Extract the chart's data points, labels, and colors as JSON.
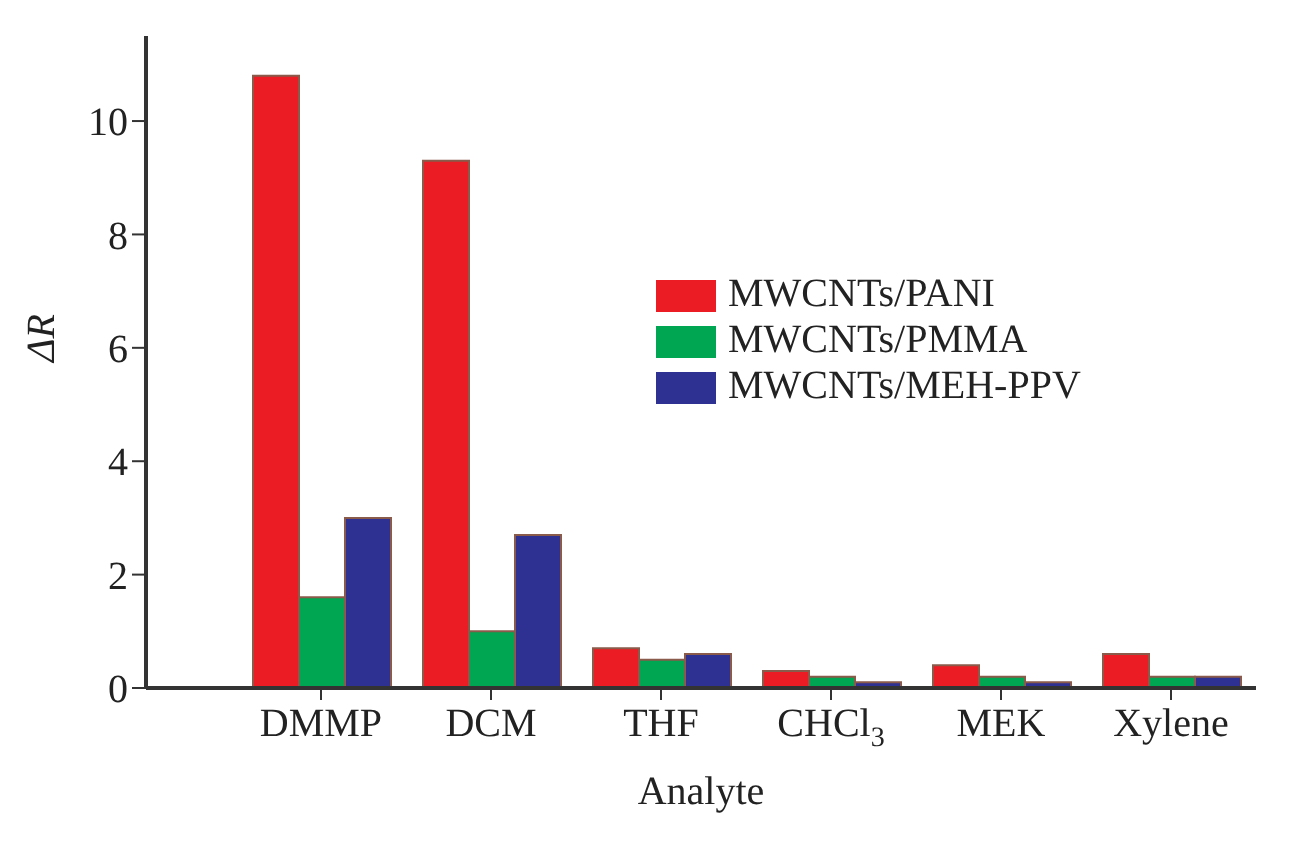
{
  "chart_data": {
    "type": "bar",
    "xlabel": "Analyte",
    "ylabel": "ΔR",
    "categories": [
      "DMMP",
      "DCM",
      "THF",
      "CHCl$_{3}$",
      "MEK",
      "Xylene"
    ],
    "series": [
      {
        "name": "MWCNTs/PANI",
        "color": "#ec1c24",
        "values": [
          10.8,
          9.3,
          0.7,
          0.3,
          0.4,
          0.6
        ]
      },
      {
        "name": "MWCNTs/PMMA",
        "color": "#00a651",
        "values": [
          1.6,
          1.0,
          0.5,
          0.2,
          0.2,
          0.2
        ]
      },
      {
        "name": "MWCNTs/MEH-PPV",
        "color": "#2e3192",
        "values": [
          3.0,
          2.7,
          0.6,
          0.1,
          0.1,
          0.2
        ]
      }
    ],
    "ylim": [
      0,
      11.5
    ],
    "yticks": [
      0,
      2,
      4,
      6,
      8,
      10
    ],
    "grid": false,
    "legend": "top right"
  }
}
